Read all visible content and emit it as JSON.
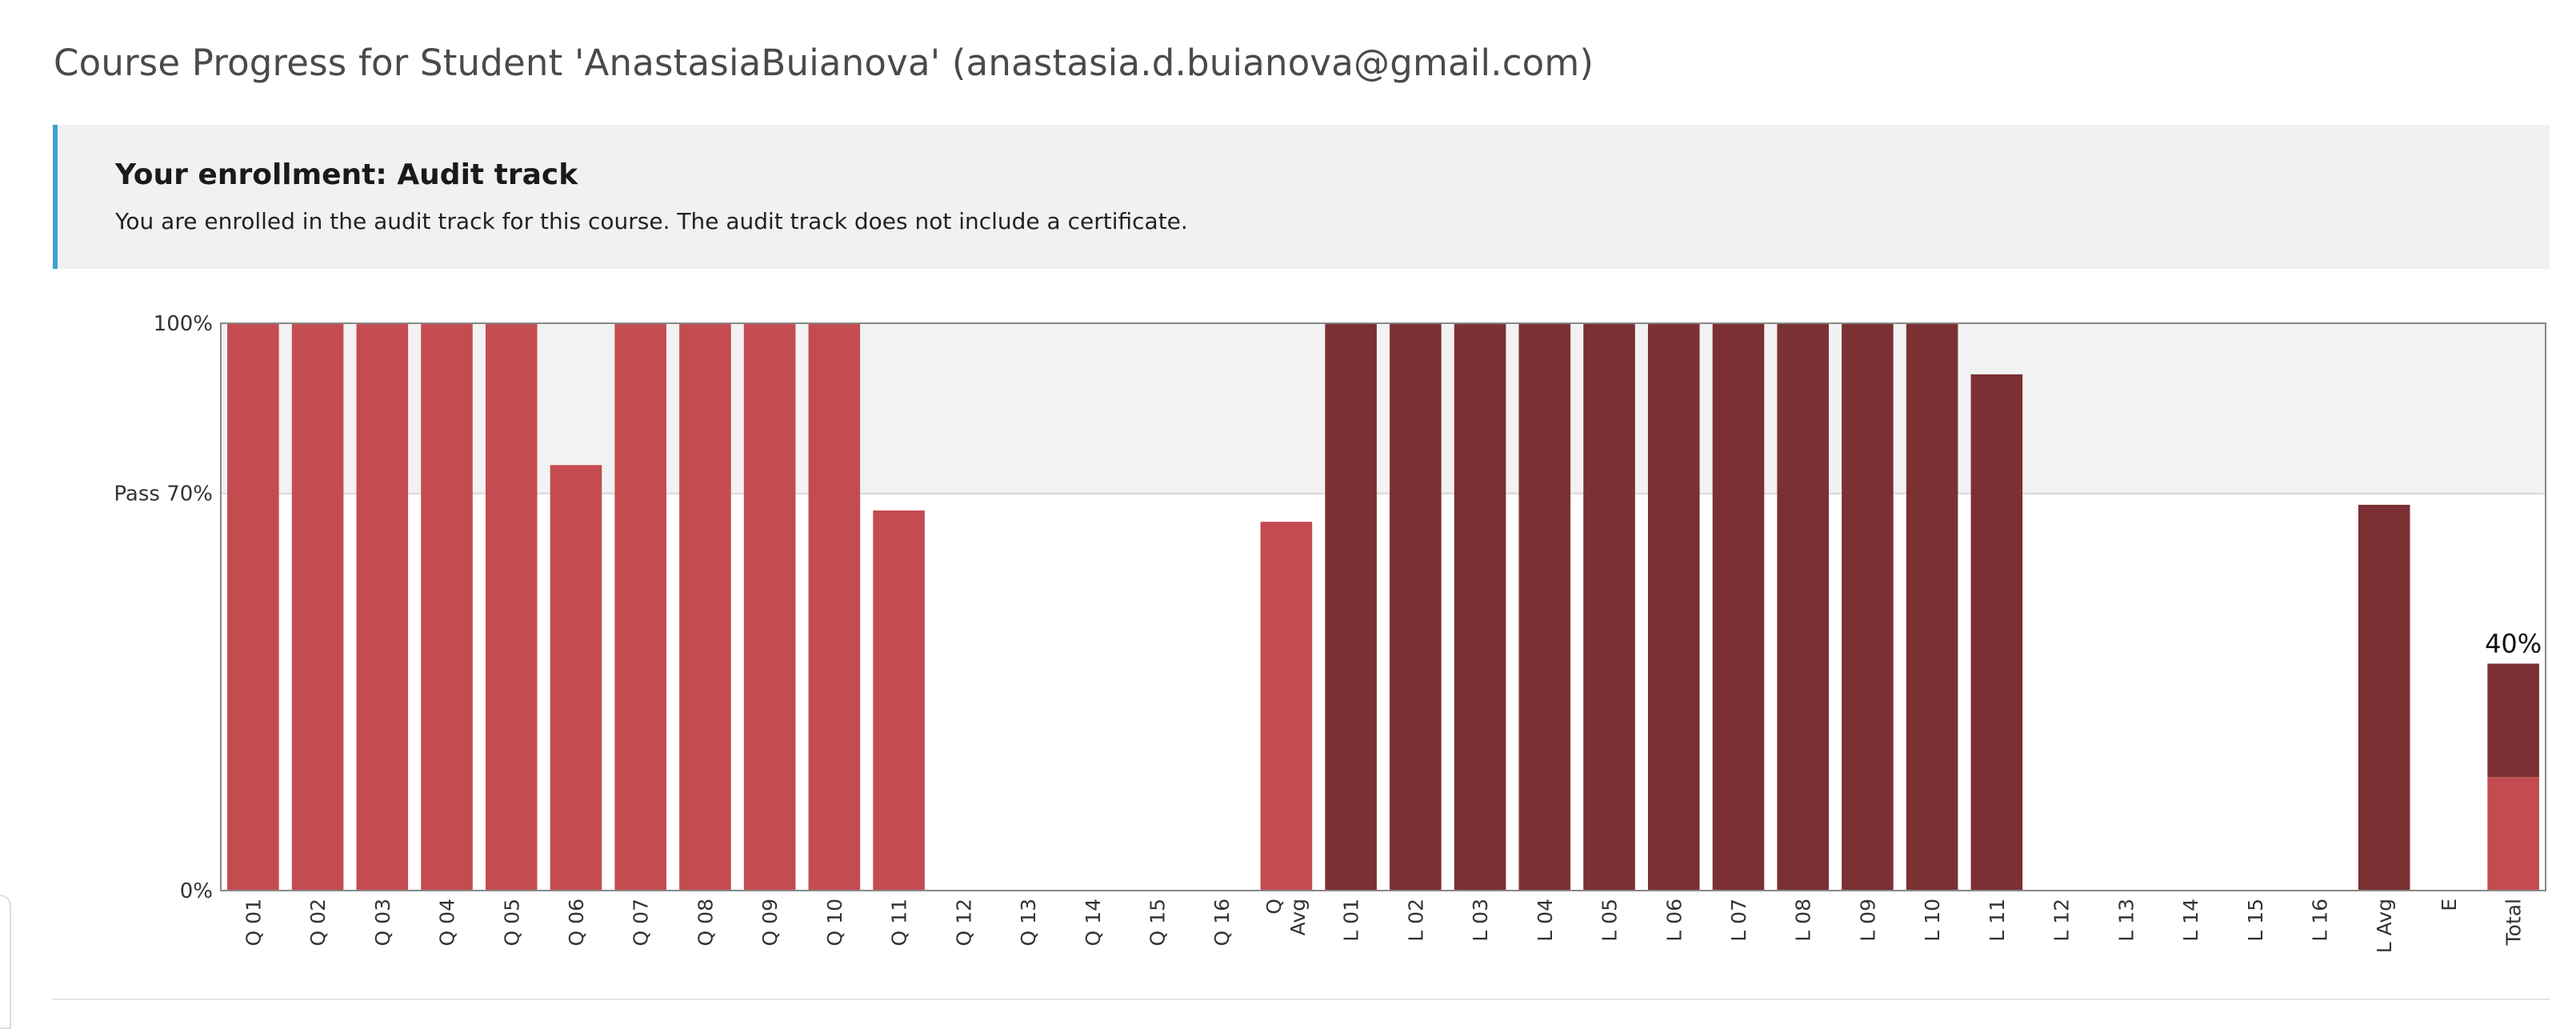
{
  "page": {
    "title": "Course Progress for Student 'AnastasiaBuianova' (anastasia.d.buianova@gmail.com)"
  },
  "enrollment": {
    "heading": "Your enrollment: Audit track",
    "message": "You are enrolled in the audit track for this course. The audit track does not include a certificate."
  },
  "chart_data": {
    "type": "bar",
    "ylim": [
      0,
      100
    ],
    "y_ticks": [
      {
        "value": 0,
        "label": "0%"
      },
      {
        "value": 70,
        "label": "Pass 70%"
      },
      {
        "value": 100,
        "label": "100%"
      }
    ],
    "pass_band": [
      70,
      100
    ],
    "colors": {
      "quiz": "#c44c50",
      "lab": "#7b3034",
      "pass_band": "#f2f2f2",
      "axis": "#888888"
    },
    "categories": [
      "Q 01",
      "Q 02",
      "Q 03",
      "Q 04",
      "Q 05",
      "Q 06",
      "Q 07",
      "Q 08",
      "Q 09",
      "Q 10",
      "Q 11",
      "Q 12",
      "Q 13",
      "Q 14",
      "Q 15",
      "Q 16",
      "Q Avg",
      "L 01",
      "L 02",
      "L 03",
      "L 04",
      "L 05",
      "L 06",
      "L 07",
      "L 08",
      "L 09",
      "L 10",
      "L 11",
      "L 12",
      "L 13",
      "L 14",
      "L 15",
      "L 16",
      "L Avg",
      "E",
      "Total"
    ],
    "series": [
      {
        "values": [
          100,
          100,
          100,
          100,
          100,
          75,
          100,
          100,
          100,
          100,
          67,
          0,
          0,
          0,
          0,
          0,
          65,
          null,
          null,
          null,
          null,
          null,
          null,
          null,
          null,
          null,
          null,
          null,
          null,
          null,
          null,
          null,
          null,
          null,
          null,
          20
        ]
      },
      {
        "values": [
          null,
          null,
          null,
          null,
          null,
          null,
          null,
          null,
          null,
          null,
          null,
          null,
          null,
          null,
          null,
          null,
          null,
          100,
          100,
          100,
          100,
          100,
          100,
          100,
          100,
          100,
          100,
          91,
          0,
          0,
          0,
          0,
          0,
          68,
          null,
          20
        ]
      }
    ],
    "total": {
      "value": 40,
      "label": "40%"
    }
  }
}
